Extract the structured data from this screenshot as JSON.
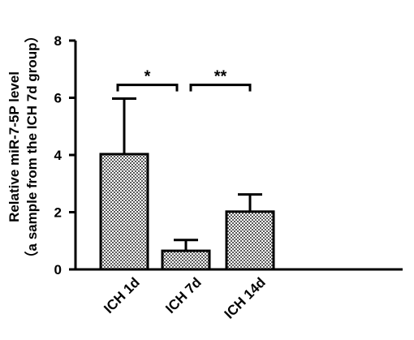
{
  "chart_data": {
    "type": "bar",
    "categories": [
      "ICH 1d",
      "ICH 7d",
      "ICH 14d"
    ],
    "values": [
      4.03,
      0.65,
      2.02
    ],
    "error_upper": [
      5.97,
      1.03,
      2.62
    ],
    "ylabel_line1": "Relative miR-7-5P level",
    "ylabel_line2": "（a sample from the ICH  7d group）",
    "ylim": [
      0,
      8
    ],
    "yticks": [
      "0",
      "2",
      "4",
      "6",
      "8"
    ],
    "ytick_values": [
      0,
      2,
      4,
      6,
      8
    ],
    "grid": false,
    "bar_fill": "checkered-gray",
    "significance": [
      {
        "from": 0,
        "to": 1,
        "label": "*",
        "level": 6.45
      },
      {
        "from": 1,
        "to": 2,
        "label": "**",
        "level": 6.45
      }
    ]
  }
}
